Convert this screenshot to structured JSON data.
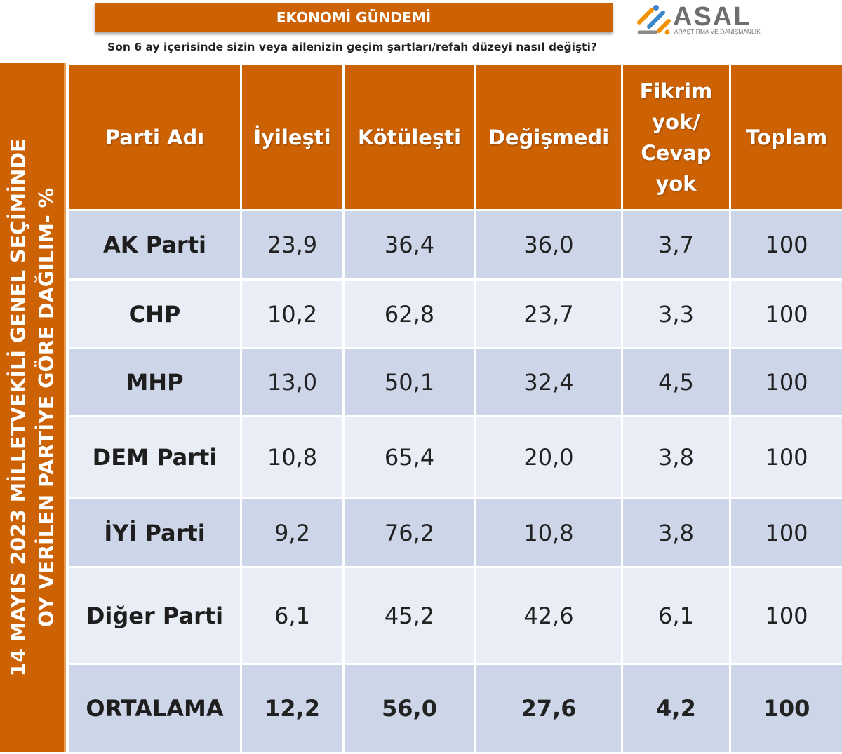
{
  "banner": {
    "title": "EKONOMİ GÜNDEMİ"
  },
  "logo": {
    "name": "ASAL",
    "tagline": "ARAŞTIRMA VE DANIŞMANLIK",
    "colors": [
      "#f39200",
      "#3a86c8",
      "#8a8a8a"
    ]
  },
  "question": "Son 6 ay içerisinde sizin veya ailenizin geçim şartları/refah  düzeyi nasıl değişti?",
  "side_label": {
    "line1": "14 MAYIS 2023 MİLLETVEKİLİ  GENEL SEÇİMİNDE",
    "line2": "OY VERİLEN  PARTİYE GÖRE DAĞILIM- %"
  },
  "colors": {
    "header_orange": "#cc6204",
    "row_blue": "#cdd6e8",
    "row_light": "#e9edf5"
  },
  "table": {
    "headers": [
      "Parti Adı",
      "İyileşti",
      "Kötüleşti",
      "Değişmedi",
      "Fikrim yok/ Cevap yok",
      "Toplam"
    ],
    "rows": [
      [
        "AK Parti",
        "23,9",
        "36,4",
        "36,0",
        "3,7",
        "100"
      ],
      [
        "CHP",
        "10,2",
        "62,8",
        "23,7",
        "3,3",
        "100"
      ],
      [
        "MHP",
        "13,0",
        "50,1",
        "32,4",
        "4,5",
        "100"
      ],
      [
        "DEM Parti",
        "10,8",
        "65,4",
        "20,0",
        "3,8",
        "100"
      ],
      [
        "İYİ Parti",
        "9,2",
        "76,2",
        "10,8",
        "3,8",
        "100"
      ],
      [
        "Diğer Parti",
        "6,1",
        "45,2",
        "42,6",
        "6,1",
        "100"
      ],
      [
        "ORTALAMA",
        "12,2",
        "56,0",
        "27,6",
        "4,2",
        "100"
      ]
    ]
  }
}
